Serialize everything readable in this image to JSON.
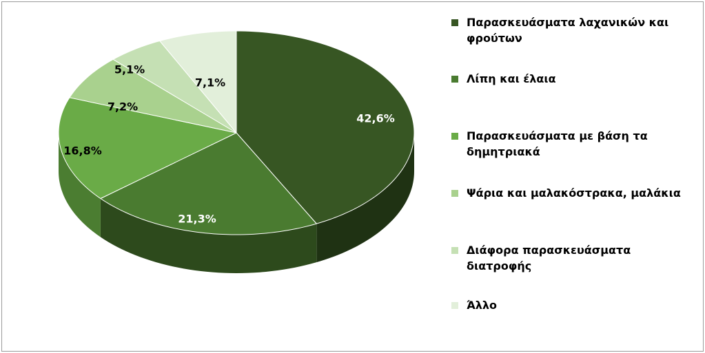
{
  "chart_data": {
    "type": "pie",
    "style": "3d",
    "title": "",
    "categories": [
      "Παρασκευάσματα λαχανικών και φρούτων",
      "Λίπη και έλαια",
      "Παρασκευάσματα με βάση τα δημητριακά",
      "Ψάρια και μαλακόστρακα, μαλάκια",
      "Διάφορα παρασκευάσματα διατροφής",
      "Άλλο"
    ],
    "values": [
      42.6,
      21.3,
      16.8,
      7.2,
      5.1,
      7.1
    ],
    "value_labels": [
      "42,6%",
      "21,3%",
      "16,8%",
      "7,2%",
      "5,1%",
      "7,1%"
    ],
    "colors": [
      "#375623",
      "#4a7b30",
      "#6aab47",
      "#a9d18e",
      "#c5e0b4",
      "#e2efda"
    ],
    "side_colors": [
      "#1f3213",
      "#2d4a1c",
      "#4b7d31",
      "#7c9e66",
      "#97ad88",
      "#b0bca8"
    ],
    "label_colors": [
      "#ffffff",
      "#ffffff",
      "#000000",
      "#000000",
      "#000000",
      "#000000"
    ],
    "legend_position": "right"
  }
}
